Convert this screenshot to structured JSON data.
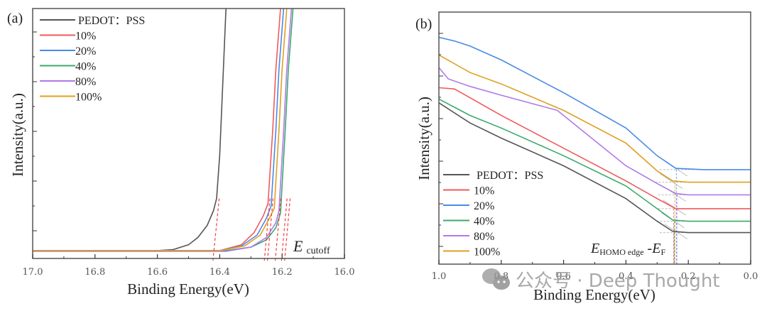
{
  "chart_data": [
    {
      "panel": "(a)",
      "type": "line",
      "title": "",
      "xlabel": "Binding Energy(eV)",
      "ylabel": "Intensity(a.u.)",
      "xlim": [
        17.0,
        16.0
      ],
      "ylim": [
        0,
        100
      ],
      "x_reversed": true,
      "xticks": [
        "17.0",
        "16.8",
        "16.6",
        "16.4",
        "16.2",
        "16.0"
      ],
      "xtick_values": [
        17.0,
        16.8,
        16.6,
        16.4,
        16.2,
        16.0
      ],
      "grid": false,
      "legend_position": "top-left",
      "annotation": {
        "main": "E",
        "sub": "cutoff"
      },
      "series": [
        {
          "name": "PEDOT：PSS",
          "color": "#555555",
          "x": [
            17.0,
            16.6,
            16.55,
            16.5,
            16.47,
            16.44,
            16.42,
            16.41,
            16.4,
            16.39,
            16.38
          ],
          "y": [
            0.6,
            0.6,
            1.0,
            3.0,
            6.0,
            11.0,
            17.0,
            22.0,
            40.0,
            70.0,
            100.0
          ],
          "cutoff": 16.42
        },
        {
          "name": "10%",
          "color": "#f05a5a",
          "x": [
            17.0,
            16.4,
            16.33,
            16.29,
            16.26,
            16.245,
            16.23,
            16.22,
            16.205
          ],
          "y": [
            0.6,
            0.6,
            3.0,
            8.0,
            15.0,
            20.0,
            50.0,
            75.0,
            100.0
          ],
          "cutoff": 16.255
        },
        {
          "name": "20%",
          "color": "#4a8ae8",
          "x": [
            17.0,
            16.4,
            16.33,
            16.28,
            16.25,
            16.235,
            16.22,
            16.21,
            16.195
          ],
          "y": [
            0.6,
            0.6,
            2.5,
            7.0,
            14.0,
            19.0,
            50.0,
            75.0,
            100.0
          ],
          "cutoff": 16.245
        },
        {
          "name": "40%",
          "color": "#3aaa6a",
          "x": [
            17.0,
            16.38,
            16.3,
            16.25,
            16.22,
            16.205,
            16.19,
            16.18,
            16.165
          ],
          "y": [
            0.6,
            0.6,
            2.0,
            5.0,
            10.0,
            16.0,
            50.0,
            75.0,
            100.0
          ],
          "cutoff": 16.19
        },
        {
          "name": "80%",
          "color": "#b07ae8",
          "x": [
            17.0,
            16.38,
            16.3,
            16.25,
            16.22,
            16.21,
            16.195,
            16.185,
            16.17
          ],
          "y": [
            0.3,
            0.3,
            2.0,
            6.0,
            12.0,
            17.0,
            50.0,
            75.0,
            100.0
          ],
          "cutoff": 16.2
        },
        {
          "name": "100%",
          "color": "#e0a020",
          "x": [
            17.0,
            16.4,
            16.32,
            16.27,
            16.24,
            16.225,
            16.21,
            16.2,
            16.185
          ],
          "y": [
            0.6,
            0.6,
            2.5,
            7.0,
            14.0,
            18.0,
            50.0,
            75.0,
            100.0
          ],
          "cutoff": 16.22
        }
      ]
    },
    {
      "panel": "(b)",
      "type": "line",
      "title": "",
      "xlabel": "Binding Energy(eV)",
      "ylabel": "Intensity(a.u.)",
      "xlim": [
        1.0,
        0.0
      ],
      "ylim": [
        0,
        100
      ],
      "x_reversed": true,
      "xticks": [
        "1.0",
        "0.8",
        "0.6",
        "0.4",
        "0.2",
        "0.0"
      ],
      "xtick_values": [
        1.0,
        0.8,
        0.6,
        0.4,
        0.2,
        0.0
      ],
      "grid": false,
      "legend_position": "bottom-left",
      "annotation": {
        "main": "E",
        "sub": "HOMO edge",
        "mid": " -",
        "main2": "E",
        "sub2": "F"
      },
      "series": [
        {
          "name": "PEDOT：PSS",
          "color": "#555555",
          "x": [
            1.0,
            0.9,
            0.8,
            0.6,
            0.4,
            0.3,
            0.25,
            0.2,
            0.0
          ],
          "y": [
            64,
            56,
            50,
            39,
            26,
            17,
            13,
            12.5,
            12.5
          ],
          "edge": 0.235
        },
        {
          "name": "10%",
          "color": "#f05a5a",
          "x": [
            1.0,
            0.95,
            0.9,
            0.8,
            0.6,
            0.4,
            0.3,
            0.24,
            0.2,
            0.0
          ],
          "y": [
            70,
            69.5,
            66,
            59,
            46,
            33,
            26,
            22,
            22,
            22
          ],
          "edge": 0.24
        },
        {
          "name": "20%",
          "color": "#4a8ae8",
          "x": [
            1.0,
            0.95,
            0.9,
            0.8,
            0.6,
            0.4,
            0.3,
            0.24,
            0.15,
            0.0
          ],
          "y": [
            90,
            88.5,
            86.5,
            81,
            68,
            54,
            43,
            38,
            37.5,
            37.5
          ],
          "edge": 0.235
        },
        {
          "name": "40%",
          "color": "#3aaa6a",
          "x": [
            1.0,
            0.9,
            0.8,
            0.6,
            0.4,
            0.3,
            0.25,
            0.2,
            0.0
          ],
          "y": [
            65.5,
            59,
            54,
            43,
            31,
            22,
            17.5,
            17,
            17
          ],
          "edge": 0.245
        },
        {
          "name": "80%",
          "color": "#b07ae8",
          "x": [
            1.0,
            0.97,
            0.9,
            0.8,
            0.62,
            0.5,
            0.4,
            0.3,
            0.24,
            0.2,
            0.0
          ],
          "y": [
            78,
            73.5,
            70.5,
            67,
            61,
            49,
            39,
            32,
            28,
            27.5,
            27.5
          ],
          "edge": 0.24
        },
        {
          "name": "100%",
          "color": "#e0a020",
          "x": [
            1.0,
            0.9,
            0.8,
            0.6,
            0.4,
            0.3,
            0.25,
            0.2,
            0.0
          ],
          "y": [
            83,
            76,
            71.5,
            61,
            48,
            37,
            33,
            32.5,
            32.5
          ],
          "edge": 0.25
        }
      ]
    }
  ],
  "watermark": {
    "text": "公众号 · Deep Thought",
    "icon": "wechat-icon"
  }
}
